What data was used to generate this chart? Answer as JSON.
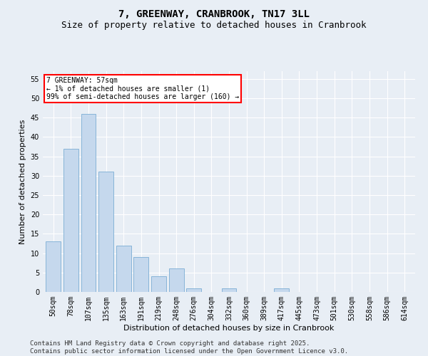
{
  "title": "7, GREENWAY, CRANBROOK, TN17 3LL",
  "subtitle": "Size of property relative to detached houses in Cranbrook",
  "xlabel": "Distribution of detached houses by size in Cranbrook",
  "ylabel": "Number of detached properties",
  "categories": [
    "50sqm",
    "78sqm",
    "107sqm",
    "135sqm",
    "163sqm",
    "191sqm",
    "219sqm",
    "248sqm",
    "276sqm",
    "304sqm",
    "332sqm",
    "360sqm",
    "389sqm",
    "417sqm",
    "445sqm",
    "473sqm",
    "501sqm",
    "530sqm",
    "558sqm",
    "586sqm",
    "614sqm"
  ],
  "values": [
    13,
    37,
    46,
    31,
    12,
    9,
    4,
    6,
    1,
    0,
    1,
    0,
    0,
    1,
    0,
    0,
    0,
    0,
    0,
    0,
    0
  ],
  "bar_color": "#c5d8ed",
  "bar_edge_color": "#7aadd4",
  "annotation_text": "7 GREENWAY: 57sqm\n← 1% of detached houses are smaller (1)\n99% of semi-detached houses are larger (160) →",
  "annotation_box_color": "white",
  "annotation_box_edge_color": "red",
  "ylim": [
    0,
    57
  ],
  "yticks": [
    0,
    5,
    10,
    15,
    20,
    25,
    30,
    35,
    40,
    45,
    50,
    55
  ],
  "footer_line1": "Contains HM Land Registry data © Crown copyright and database right 2025.",
  "footer_line2": "Contains public sector information licensed under the Open Government Licence v3.0.",
  "bg_color": "#e8eef5",
  "plot_bg_color": "#e8eef5",
  "grid_color": "white",
  "title_fontsize": 10,
  "subtitle_fontsize": 9,
  "tick_fontsize": 7,
  "label_fontsize": 8,
  "footer_fontsize": 6.5
}
